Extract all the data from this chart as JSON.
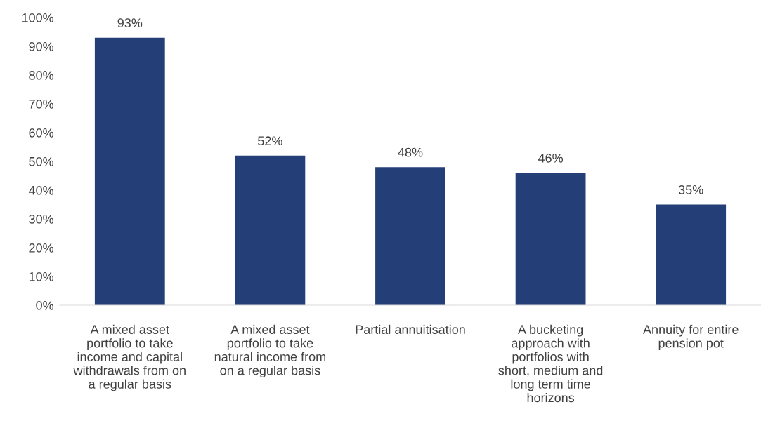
{
  "chart_data": {
    "type": "bar",
    "categories": [
      "A mixed asset\nportfolio to take\nincome and capital\nwithdrawals from on\na regular basis",
      "A mixed asset\nportfolio to take\nnatural income from\non a regular basis",
      "Partial annuitisation",
      "A bucketing\napproach with\nportfolios with\nshort, medium and\nlong term time\nhorizons",
      "Annuity for entire\npension pot"
    ],
    "values": [
      93,
      52,
      48,
      46,
      35
    ],
    "value_labels": [
      "93%",
      "52%",
      "48%",
      "46%",
      "35%"
    ],
    "color": "#243f78",
    "ylim": [
      0,
      100
    ],
    "yticks": [
      {
        "value": 0,
        "label": "0%"
      },
      {
        "value": 10,
        "label": "10%"
      },
      {
        "value": 20,
        "label": "20%"
      },
      {
        "value": 30,
        "label": "30%"
      },
      {
        "value": 40,
        "label": "40%"
      },
      {
        "value": 50,
        "label": "50%"
      },
      {
        "value": 60,
        "label": "60%"
      },
      {
        "value": 70,
        "label": "70%"
      },
      {
        "value": 80,
        "label": "80%"
      },
      {
        "value": 90,
        "label": "90%"
      },
      {
        "value": 100,
        "label": "100%"
      }
    ],
    "grid": false,
    "legend": false
  }
}
